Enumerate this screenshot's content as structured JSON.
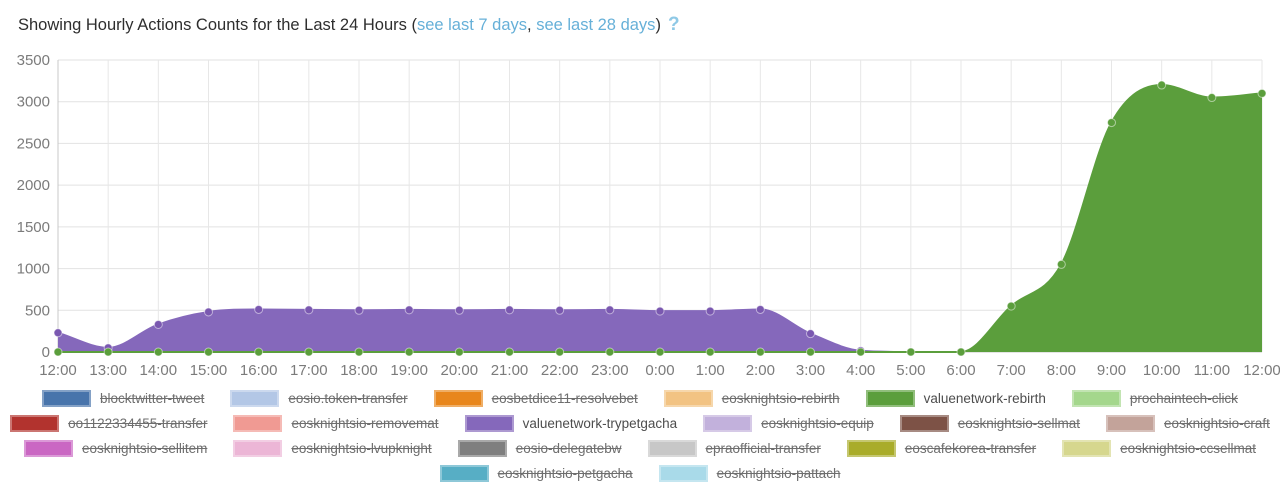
{
  "header": {
    "title_prefix": "Showing Hourly Actions Counts for the Last 24 Hours (",
    "link_7d": "see last 7 days",
    "separator": ", ",
    "link_28d": "see last 28 days",
    "title_suffix": ")",
    "help_icon": "?",
    "link_color": "#66b0d8"
  },
  "chart_data": {
    "type": "area",
    "title": "Showing Hourly Actions Counts for the Last 24 Hours",
    "x": [
      "12:00",
      "13:00",
      "14:00",
      "15:00",
      "16:00",
      "17:00",
      "18:00",
      "19:00",
      "20:00",
      "21:00",
      "22:00",
      "23:00",
      "0:00",
      "1:00",
      "2:00",
      "3:00",
      "4:00",
      "5:00",
      "6:00",
      "7:00",
      "8:00",
      "9:00",
      "10:00",
      "11:00",
      "12:00"
    ],
    "ylim": [
      0,
      3500
    ],
    "ytick_step": 500,
    "grid": true,
    "legend_position": "bottom",
    "series": [
      {
        "name": "valuenetwork-trypetgacha",
        "color": "#8568bb",
        "marker_color": "#7a58b0",
        "values": [
          230,
          50,
          330,
          480,
          510,
          505,
          500,
          505,
          500,
          505,
          500,
          505,
          490,
          490,
          510,
          220,
          15,
          0,
          0,
          null,
          null,
          null,
          null,
          null,
          null
        ]
      },
      {
        "name": "valuenetwork-rebirth",
        "color": "#5b9e3c",
        "marker_color": "#5b9e3c",
        "values": [
          0,
          0,
          0,
          0,
          0,
          0,
          0,
          0,
          0,
          0,
          0,
          0,
          0,
          0,
          0,
          0,
          0,
          0,
          0,
          550,
          1050,
          2750,
          3200,
          3050,
          3100
        ]
      }
    ]
  },
  "legend": {
    "rows": [
      [
        {
          "label": "blocktwitter-tweet",
          "color": "#4874ab",
          "disabled": true
        },
        {
          "label": "eosio.token-transfer",
          "color": "#b3c7e6",
          "disabled": true
        },
        {
          "label": "eosbetdice11-resolvebet",
          "color": "#e8861c",
          "disabled": true
        },
        {
          "label": "eosknightsio-rebirth",
          "color": "#f2c383",
          "disabled": true
        },
        {
          "label": "valuenetwork-rebirth",
          "color": "#5b9e3c",
          "disabled": false
        },
        {
          "label": "prochaintech-click",
          "color": "#a4d78c",
          "disabled": true
        }
      ],
      [
        {
          "label": "oo1122334455-transfer",
          "color": "#b2332e",
          "disabled": true
        },
        {
          "label": "eosknightsio-removemat",
          "color": "#f09a93",
          "disabled": true
        },
        {
          "label": "valuenetwork-trypetgacha",
          "color": "#8568bb",
          "disabled": false
        },
        {
          "label": "eosknightsio-equip",
          "color": "#c2b1dc",
          "disabled": true
        },
        {
          "label": "eosknightsio-sellmat",
          "color": "#7d5246",
          "disabled": true
        },
        {
          "label": "eosknightsio-craft",
          "color": "#c3a39a",
          "disabled": true
        }
      ],
      [
        {
          "label": "eosknightsio-sellitem",
          "color": "#ca67c3",
          "disabled": true
        },
        {
          "label": "eosknightsio-lvupknight",
          "color": "#ecb6d6",
          "disabled": true
        },
        {
          "label": "eosio-delegatebw",
          "color": "#7f7f7f",
          "disabled": true
        },
        {
          "label": "epraofficial-transfer",
          "color": "#c7c7c7",
          "disabled": true
        },
        {
          "label": "eoscafekorea-transfer",
          "color": "#a9ac2a",
          "disabled": true
        },
        {
          "label": "eosknightsio-ccsellmat",
          "color": "#d6d78e",
          "disabled": true
        }
      ],
      [
        {
          "label": "eosknightsio-petgacha",
          "color": "#57aec5",
          "disabled": true
        },
        {
          "label": "eosknightsio-pattach",
          "color": "#a9dae9",
          "disabled": true
        }
      ]
    ]
  }
}
